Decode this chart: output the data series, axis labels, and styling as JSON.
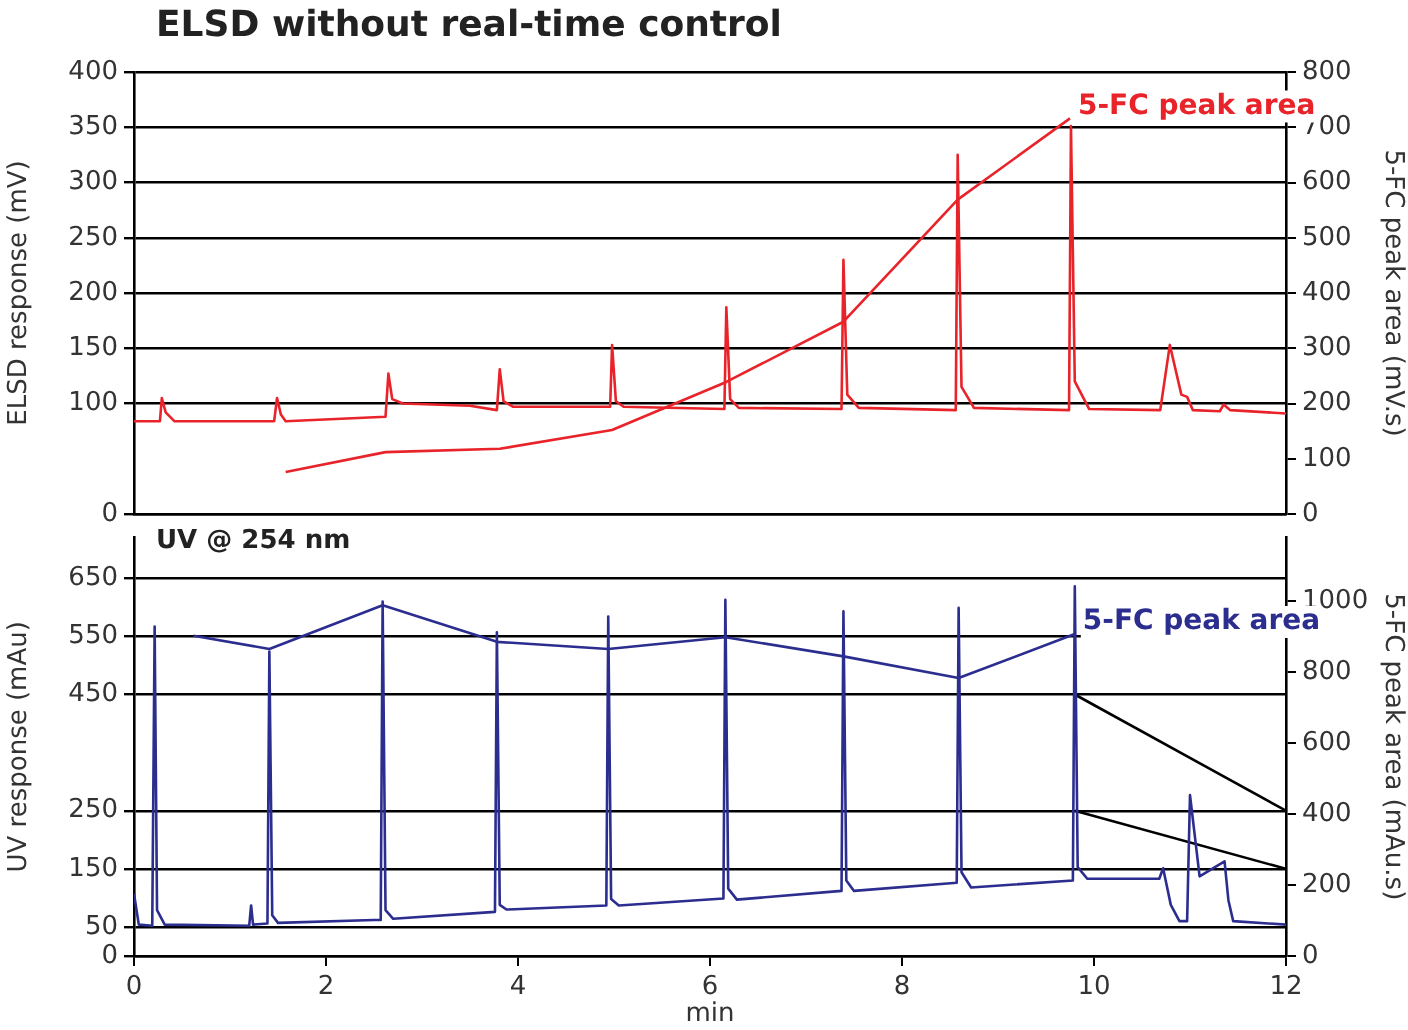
{
  "chart_data": [
    {
      "type": "line",
      "title": "ELSD without real-time control",
      "ylabel": "ELSD response (mV)",
      "y2label": "5-FC peak area (mV.s)",
      "xlim": [
        0,
        12
      ],
      "xticks": [
        0,
        2,
        4,
        6,
        8,
        10,
        12
      ],
      "ylim": [
        0,
        400
      ],
      "yticks": [
        0,
        100,
        150,
        200,
        250,
        300,
        350,
        400
      ],
      "y2lim": [
        0,
        800
      ],
      "y2ticks": [
        0,
        100,
        200,
        300,
        400,
        500,
        600,
        700,
        800
      ],
      "grid": "y",
      "tick_labels": "y",
      "marker": "none",
      "series": [
        {
          "type": "line",
          "axis": "y",
          "color": "#e8232a",
          "x": [
            0,
            0.27,
            0.29,
            0.33,
            0.42,
            1.46,
            1.49,
            1.53,
            1.58,
            2.62,
            2.65,
            2.69,
            2.8,
            3.5,
            3.78,
            3.81,
            3.85,
            3.95,
            4.96,
            4.98,
            5.02,
            5.1,
            6.15,
            6.17,
            6.21,
            6.3,
            7.37,
            7.39,
            7.43,
            7.55,
            8.56,
            8.58,
            8.62,
            8.75,
            9.74,
            9.76,
            9.8,
            9.95,
            10.69,
            10.79,
            10.91,
            10.97,
            11.03,
            11.31,
            11.35,
            11.42,
            12
          ],
          "values": [
            84,
            84,
            105,
            92,
            84,
            84,
            105,
            90,
            84,
            88,
            127,
            104,
            100,
            98,
            94,
            131,
            102,
            97,
            97,
            153,
            102,
            97,
            95,
            187,
            104,
            96,
            95,
            230,
            108,
            96,
            94,
            325,
            115,
            96,
            94,
            351,
            120,
            95,
            94,
            153,
            108,
            106,
            94,
            93,
            99,
            94,
            91
          ]
        },
        {
          "type": "line",
          "axis": "y2",
          "name": "5-FC peak area",
          "color": "#e8232a",
          "x": [
            1.58,
            2.62,
            3.81,
            4.98,
            6.17,
            7.39,
            8.58,
            9.75
          ],
          "values": [
            76,
            112,
            118,
            152,
            239,
            348,
            569,
            716
          ]
        }
      ]
    },
    {
      "type": "line",
      "title": "UV @ 254 nm",
      "xlabel": "min",
      "ylabel": "UV response (mAu)",
      "y2label": "5-FC peak area (mAu.s)",
      "xlim": [
        0,
        12
      ],
      "xticks": [
        0,
        2,
        4,
        6,
        8,
        10,
        12
      ],
      "ylim": [
        0,
        720
      ],
      "yticks": [
        0,
        50,
        150,
        250,
        450,
        550,
        650
      ],
      "y2lim": [
        0,
        1180
      ],
      "y2ticks": [
        0,
        200,
        400,
        600,
        800,
        1000
      ],
      "grid": "y",
      "marker": "none",
      "series": [
        {
          "type": "line",
          "axis": "y",
          "color": "#2b2d8f",
          "x": [
            0,
            0.05,
            0.19,
            0.215,
            0.24,
            0.32,
            1.2,
            1.22,
            1.24,
            1.39,
            1.41,
            1.44,
            1.5,
            2.5,
            2.57,
            2.59,
            2.62,
            2.7,
            3.76,
            3.78,
            3.81,
            3.88,
            4.92,
            4.94,
            4.97,
            5.05,
            6.14,
            6.16,
            6.19,
            6.28,
            7.37,
            7.39,
            7.42,
            7.5,
            8.57,
            8.59,
            8.62,
            8.72,
            9.78,
            9.8,
            9.83,
            9.93,
            10.68,
            10.72,
            10.8,
            10.89,
            10.97,
            11.0,
            11.1,
            11.36,
            11.4,
            11.45,
            12
          ],
          "values": [
            107,
            54,
            52,
            567,
            79,
            54,
            52,
            87,
            54,
            56,
            524,
            70,
            57,
            62,
            62,
            610,
            79,
            64,
            76,
            557,
            88,
            80,
            87,
            584,
            98,
            87,
            99,
            613,
            116,
            97,
            112,
            593,
            130,
            112,
            126,
            599,
            144,
            118,
            130,
            636,
            153,
            133,
            133,
            151,
            88,
            60,
            60,
            277,
            137,
            163,
            96,
            60,
            54
          ]
        },
        {
          "type": "line",
          "axis": "y2",
          "name": "5-FC peak area",
          "color": "#2b2d8f",
          "x": [
            0.62,
            1.41,
            2.59,
            3.78,
            4.94,
            6.16,
            7.39,
            8.59,
            9.8
          ],
          "values": [
            903,
            866,
            989,
            886,
            866,
            899,
            845,
            784,
            908
          ]
        },
        {
          "type": "line",
          "axis": "y",
          "color": "#000000",
          "x": [
            9.8,
            12
          ],
          "values": [
            450,
            250
          ]
        },
        {
          "type": "line",
          "axis": "y",
          "color": "#000000",
          "x": [
            9.8,
            12
          ],
          "values": [
            250,
            150
          ]
        }
      ]
    }
  ]
}
